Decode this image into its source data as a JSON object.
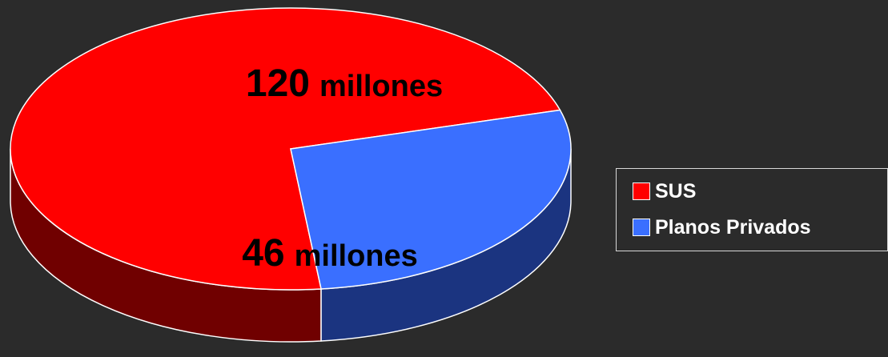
{
  "chart_data": {
    "type": "pie",
    "title": "",
    "categories": [
      "SUS",
      "Planos Privados"
    ],
    "values": [
      120,
      46
    ],
    "data_labels": [
      {
        "number": "120",
        "unit": "millones"
      },
      {
        "number": "46",
        "unit": "millones"
      }
    ],
    "legend": {
      "placement": "right",
      "entries": [
        "SUS",
        "Planos Privados"
      ]
    },
    "colors": {
      "top": [
        "#ff0000",
        "#3a6fff"
      ],
      "side": [
        "#700000",
        "#1b3480"
      ],
      "background": "#2b2b2b",
      "edge": "#ffffff"
    },
    "style": "3d"
  }
}
